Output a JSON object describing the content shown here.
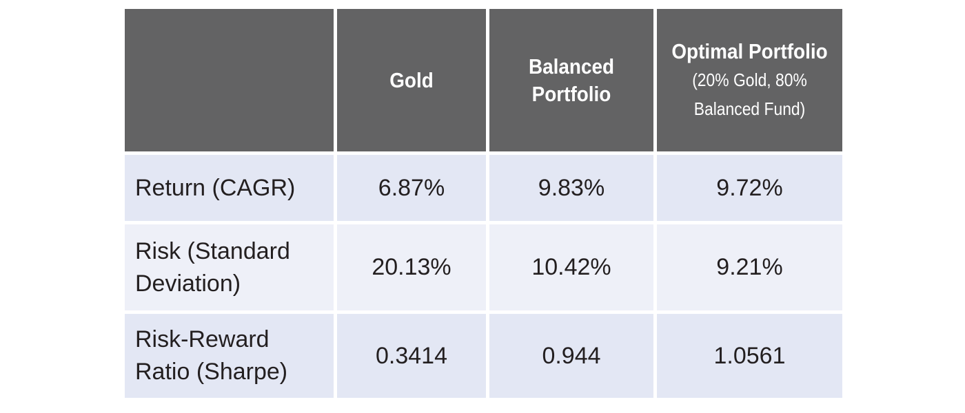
{
  "table": {
    "headers": [
      {
        "main": "",
        "sub": ""
      },
      {
        "main": "Gold",
        "sub": ""
      },
      {
        "main": "Balanced Portfolio",
        "sub": ""
      },
      {
        "main": "Optimal Portfolio",
        "sub": "(20% Gold, 80% Balanced Fund)"
      }
    ],
    "rows": [
      {
        "label": "Return (CAGR)",
        "values": [
          "6.87%",
          "9.83%",
          "9.72%"
        ]
      },
      {
        "label": "Risk (Standard Deviation)",
        "values": [
          "20.13%",
          "10.42%",
          "9.21%"
        ]
      },
      {
        "label": "Risk-Reward Ratio (Sharpe)",
        "values": [
          "0.3414",
          "0.944",
          "1.0561"
        ]
      }
    ]
  }
}
